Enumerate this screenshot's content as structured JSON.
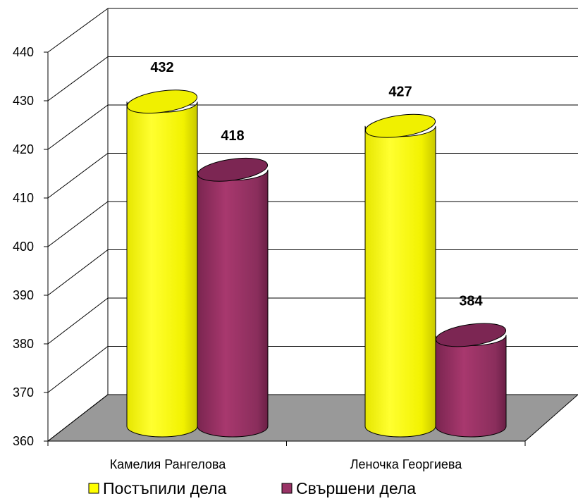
{
  "chart_data": {
    "type": "bar",
    "title": "",
    "xlabel": "",
    "ylabel": "",
    "ylim": [
      360,
      440
    ],
    "yticks": [
      360,
      370,
      380,
      390,
      400,
      410,
      420,
      430,
      440
    ],
    "grid": true,
    "categories": [
      "Камелия Рангелова",
      "Леночка Георгиева"
    ],
    "series": [
      {
        "name": "Постъпили дела",
        "values": [
          432,
          427
        ],
        "color": "#ffff00"
      },
      {
        "name": "Свършени дела",
        "values": [
          418,
          384
        ],
        "color": "#993366"
      }
    ],
    "legend_position": "bottom",
    "floor_color": "#999999",
    "style": "3d-cylinder"
  }
}
